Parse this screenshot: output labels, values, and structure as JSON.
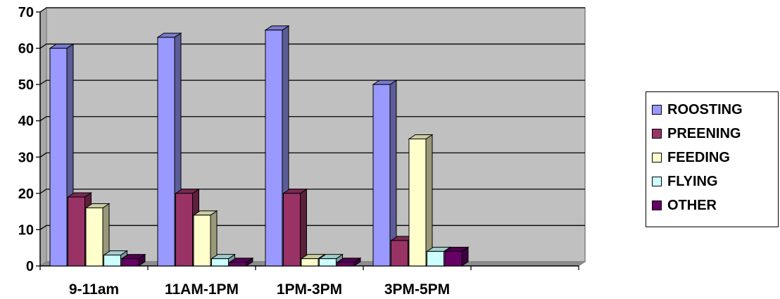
{
  "chart_data": {
    "type": "bar",
    "categories": [
      "9-11am",
      "11AM-1PM",
      "1PM-3PM",
      "3PM-5PM",
      ""
    ],
    "series": [
      {
        "name": "ROOSTING",
        "color": "#9999ff",
        "values": [
          60,
          63,
          65,
          50,
          null
        ]
      },
      {
        "name": "PREENING",
        "color": "#993366",
        "values": [
          19,
          20,
          20,
          7,
          null
        ]
      },
      {
        "name": "FEEDING",
        "color": "#ffffcc",
        "values": [
          16,
          14,
          2,
          35,
          null
        ]
      },
      {
        "name": "FLYING",
        "color": "#ccffff",
        "values": [
          3,
          2,
          2,
          4,
          null
        ]
      },
      {
        "name": "OTHER",
        "color": "#660066",
        "values": [
          2,
          1,
          1,
          4,
          null
        ]
      }
    ],
    "ylim": [
      0,
      70
    ],
    "yticks": [
      0,
      10,
      20,
      30,
      40,
      50,
      60,
      70
    ],
    "grid": true,
    "wall_color": "#c0c0c0",
    "legend_position": "right",
    "title": "",
    "xlabel": "",
    "ylabel": ""
  }
}
